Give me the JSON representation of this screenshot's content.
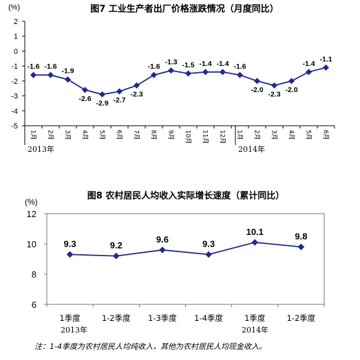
{
  "chart_data": [
    {
      "type": "line",
      "title": "图7  工业生产者出厂价格涨跌情况（月度同比）",
      "ylabel": "(%)",
      "ylim": [
        -5,
        2
      ],
      "yticks": [
        "2",
        "1",
        "0",
        "-1",
        "-2",
        "-3",
        "-4",
        "-5"
      ],
      "categories": [
        "1月",
        "2月",
        "3月",
        "4月",
        "5月",
        "6月",
        "7月",
        "8月",
        "9月",
        "10月",
        "11月",
        "12月",
        "1月",
        "2月",
        "3月",
        "4月",
        "5月",
        "6月"
      ],
      "year_labels": [
        "2013年",
        "2014年"
      ],
      "values": [
        -1.6,
        -1.6,
        -1.9,
        -2.6,
        -2.9,
        -2.7,
        -2.3,
        -1.6,
        -1.3,
        -1.5,
        -1.4,
        -1.4,
        -1.6,
        -2.0,
        -2.3,
        -2.0,
        -1.4,
        -1.1
      ],
      "data_labels": [
        "-1.6",
        "-1.6",
        "-1.9",
        "-2.6",
        "-2.9",
        "-2.7",
        "-2.3",
        "-1.6",
        "-1.3",
        "-1.5",
        "-1.4",
        "-1.4",
        "-1.6",
        "-2.0",
        "-2.3",
        "-2.0",
        "-1.4",
        "-1.1"
      ],
      "line_color": "#1f2a8a",
      "grid": false
    },
    {
      "type": "line",
      "title": "图8  农村居民人均收入实际增长速度（累计同比）",
      "ylabel": "(%)",
      "ylim": [
        6,
        12
      ],
      "yticks": [
        "12",
        "10",
        "8",
        "6"
      ],
      "categories": [
        "1季度",
        "1-2季度",
        "1-3季度",
        "1-4季度",
        "1季度",
        "1-2季度"
      ],
      "year_labels": [
        "2013年",
        "2014年"
      ],
      "values": [
        9.3,
        9.2,
        9.6,
        9.3,
        10.1,
        9.8
      ],
      "data_labels": [
        "9.3",
        "9.2",
        "9.6",
        "9.3",
        "10.1",
        "9.8"
      ],
      "line_color": "#1f2a8a",
      "grid": false
    }
  ],
  "note": "注：1-4季度为农村居民人均纯收入，其他为农村居民人均现金收入。"
}
